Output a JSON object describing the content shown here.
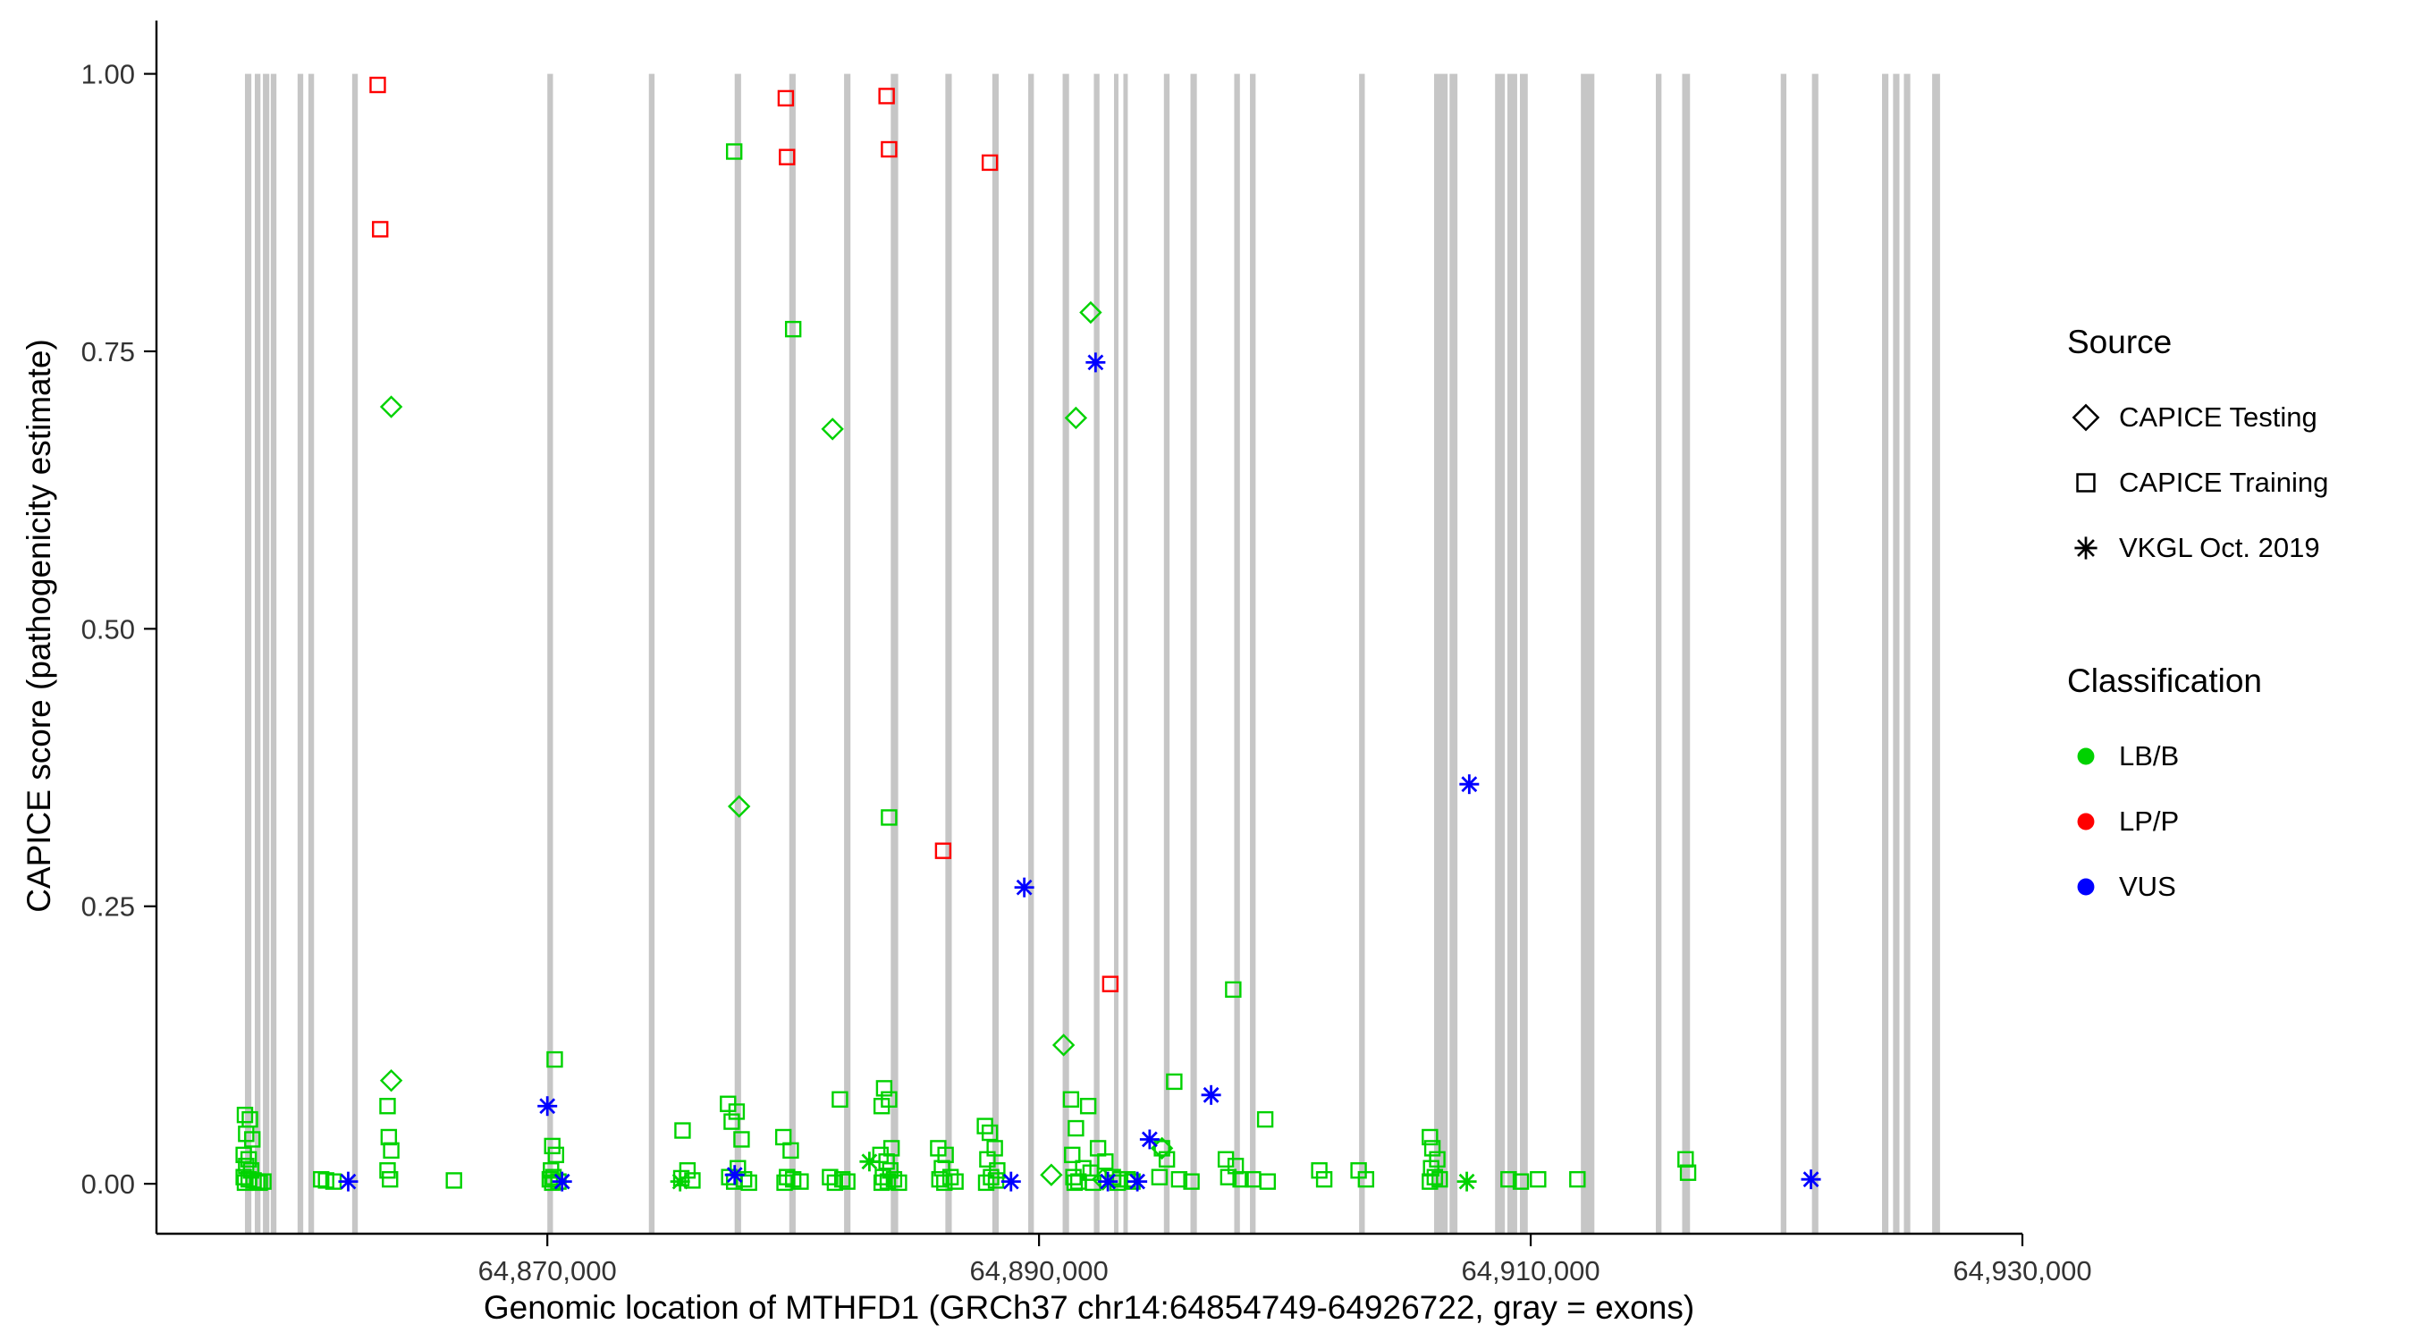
{
  "chart_data": {
    "type": "scatter",
    "title": "",
    "xlabel": "Genomic location of MTHFD1 (GRCh37 chr14:64854749-64926722, gray = exons)",
    "ylabel": "CAPICE score (pathogenicity estimate)",
    "xlim": [
      64854100,
      64930000
    ],
    "ylim": [
      -0.045,
      1.048
    ],
    "grid": "off",
    "legend_position": "right",
    "x_ticks": [
      {
        "value": 64870000,
        "label": "64,870,000"
      },
      {
        "value": 64890000,
        "label": "64,890,000"
      },
      {
        "value": 64910000,
        "label": "64,910,000"
      },
      {
        "value": 64930000,
        "label": "64,930,000"
      }
    ],
    "y_ticks": [
      {
        "value": 0.0,
        "label": "0.00"
      },
      {
        "value": 0.25,
        "label": "0.25"
      },
      {
        "value": 0.5,
        "label": "0.50"
      },
      {
        "value": 0.75,
        "label": "0.75"
      },
      {
        "value": 1.0,
        "label": "1.00"
      }
    ],
    "colors": {
      "exon": "#c6c6c6",
      "axis": "#000000",
      "tick_label": "#333333",
      "lbb": "#00d200",
      "lpp": "#ff0000",
      "vus": "#0000ff"
    },
    "exons": [
      [
        64857700,
        260
      ],
      [
        64858100,
        230
      ],
      [
        64858430,
        260
      ],
      [
        64858750,
        230
      ],
      [
        64859840,
        230
      ],
      [
        64860280,
        230
      ],
      [
        64862060,
        230
      ],
      [
        64870000,
        230
      ],
      [
        64874130,
        230
      ],
      [
        64877620,
        260
      ],
      [
        64879840,
        260
      ],
      [
        64882070,
        260
      ],
      [
        64883970,
        300
      ],
      [
        64886190,
        260
      ],
      [
        64888100,
        260
      ],
      [
        64889560,
        230
      ],
      [
        64890960,
        260
      ],
      [
        64892230,
        230
      ],
      [
        64893050,
        180
      ],
      [
        64893430,
        180
      ],
      [
        64895080,
        230
      ],
      [
        64896160,
        260
      ],
      [
        64897940,
        230
      ],
      [
        64898580,
        230
      ],
      [
        64903020,
        230
      ],
      [
        64906070,
        550
      ],
      [
        64906700,
        320
      ],
      [
        64908550,
        400
      ],
      [
        64909050,
        400
      ],
      [
        64909560,
        320
      ],
      [
        64912040,
        550
      ],
      [
        64915090,
        230
      ],
      [
        64916160,
        320
      ],
      [
        64920170,
        230
      ],
      [
        64921440,
        260
      ],
      [
        64924290,
        260
      ],
      [
        64924740,
        260
      ],
      [
        64925180,
        260
      ],
      [
        64926330,
        320
      ]
    ],
    "series": [
      {
        "name": "CAPICE Testing / LB/B",
        "source": "CAPICE Testing",
        "classification": "LB/B",
        "shape": "diamond",
        "color": "#00d200",
        "points": [
          [
            64863650,
            0.7
          ],
          [
            64863650,
            0.093
          ],
          [
            64877800,
            0.34
          ],
          [
            64881600,
            0.68
          ],
          [
            64891500,
            0.69
          ],
          [
            64892100,
            0.785
          ],
          [
            64891000,
            0.125
          ],
          [
            64895000,
            0.032
          ],
          [
            64890500,
            0.008
          ],
          [
            64892600,
            0.004
          ]
        ]
      },
      {
        "name": "CAPICE Training / LB/B",
        "source": "CAPICE Training",
        "classification": "LB/B",
        "shape": "square",
        "color": "#00d200",
        "points": [
          [
            64857700,
            0.062
          ],
          [
            64857900,
            0.058
          ],
          [
            64857750,
            0.045
          ],
          [
            64858000,
            0.04
          ],
          [
            64857650,
            0.026
          ],
          [
            64857850,
            0.022
          ],
          [
            64857750,
            0.016
          ],
          [
            64857950,
            0.012
          ],
          [
            64857650,
            0.006
          ],
          [
            64857850,
            0.004
          ],
          [
            64858050,
            0.003
          ],
          [
            64858200,
            0.002
          ],
          [
            64857700,
            0.001
          ],
          [
            64858300,
            0.001
          ],
          [
            64858450,
            0.002
          ],
          [
            64860800,
            0.004
          ],
          [
            64861000,
            0.003
          ],
          [
            64861300,
            0.002
          ],
          [
            64863500,
            0.07
          ],
          [
            64863550,
            0.042
          ],
          [
            64863650,
            0.03
          ],
          [
            64863500,
            0.012
          ],
          [
            64863600,
            0.004
          ],
          [
            64866200,
            0.003
          ],
          [
            64870300,
            0.112
          ],
          [
            64870200,
            0.034
          ],
          [
            64870350,
            0.026
          ],
          [
            64870150,
            0.012
          ],
          [
            64870250,
            0.006
          ],
          [
            64870100,
            0.004
          ],
          [
            64870450,
            0.002
          ],
          [
            64870200,
            0.001
          ],
          [
            64875500,
            0.048
          ],
          [
            64875700,
            0.012
          ],
          [
            64875450,
            0.005
          ],
          [
            64875900,
            0.003
          ],
          [
            64877350,
            0.072
          ],
          [
            64877700,
            0.065
          ],
          [
            64877500,
            0.056
          ],
          [
            64877900,
            0.04
          ],
          [
            64877750,
            0.014
          ],
          [
            64877400,
            0.006
          ],
          [
            64878000,
            0.004
          ],
          [
            64877600,
            0.002
          ],
          [
            64878200,
            0.001
          ],
          [
            64877600,
            0.93
          ],
          [
            64880000,
            0.77
          ],
          [
            64879600,
            0.042
          ],
          [
            64879900,
            0.03
          ],
          [
            64879750,
            0.006
          ],
          [
            64880000,
            0.004
          ],
          [
            64880300,
            0.002
          ],
          [
            64879650,
            0.001
          ],
          [
            64881900,
            0.076
          ],
          [
            64881500,
            0.006
          ],
          [
            64882000,
            0.004
          ],
          [
            64882200,
            0.002
          ],
          [
            64881700,
            0.001
          ],
          [
            64883900,
            0.33
          ],
          [
            64883700,
            0.086
          ],
          [
            64883900,
            0.076
          ],
          [
            64883600,
            0.07
          ],
          [
            64884000,
            0.032
          ],
          [
            64883550,
            0.026
          ],
          [
            64883800,
            0.02
          ],
          [
            64883950,
            0.012
          ],
          [
            64883650,
            0.006
          ],
          [
            64884100,
            0.004
          ],
          [
            64883850,
            0.002
          ],
          [
            64884300,
            0.001
          ],
          [
            64883600,
            0.001
          ],
          [
            64885900,
            0.032
          ],
          [
            64886200,
            0.026
          ],
          [
            64886050,
            0.014
          ],
          [
            64886400,
            0.006
          ],
          [
            64885950,
            0.004
          ],
          [
            64886600,
            0.002
          ],
          [
            64886150,
            0.001
          ],
          [
            64887800,
            0.052
          ],
          [
            64888000,
            0.046
          ],
          [
            64888200,
            0.032
          ],
          [
            64887900,
            0.022
          ],
          [
            64888300,
            0.012
          ],
          [
            64888050,
            0.006
          ],
          [
            64888250,
            0.003
          ],
          [
            64887850,
            0.001
          ],
          [
            64891300,
            0.076
          ],
          [
            64892000,
            0.07
          ],
          [
            64891500,
            0.05
          ],
          [
            64892400,
            0.032
          ],
          [
            64891350,
            0.026
          ],
          [
            64892700,
            0.02
          ],
          [
            64891800,
            0.014
          ],
          [
            64892100,
            0.01
          ],
          [
            64891400,
            0.006
          ],
          [
            64893000,
            0.006
          ],
          [
            64893300,
            0.004
          ],
          [
            64893600,
            0.004
          ],
          [
            64891600,
            0.002
          ],
          [
            64893800,
            0.002
          ],
          [
            64892200,
            0.001
          ],
          [
            64891450,
            0.001
          ],
          [
            64893200,
            0.001
          ],
          [
            64895500,
            0.092
          ],
          [
            64895000,
            0.032
          ],
          [
            64895200,
            0.022
          ],
          [
            64894900,
            0.006
          ],
          [
            64895700,
            0.004
          ],
          [
            64896200,
            0.002
          ],
          [
            64897900,
            0.175
          ],
          [
            64897600,
            0.022
          ],
          [
            64898000,
            0.016
          ],
          [
            64897700,
            0.006
          ],
          [
            64898200,
            0.004
          ],
          [
            64899200,
            0.058
          ],
          [
            64898700,
            0.004
          ],
          [
            64899300,
            0.002
          ],
          [
            64901400,
            0.012
          ],
          [
            64901600,
            0.004
          ],
          [
            64903000,
            0.012
          ],
          [
            64903300,
            0.004
          ],
          [
            64905900,
            0.042
          ],
          [
            64906000,
            0.032
          ],
          [
            64906200,
            0.022
          ],
          [
            64905950,
            0.014
          ],
          [
            64906100,
            0.006
          ],
          [
            64906300,
            0.004
          ],
          [
            64905900,
            0.002
          ],
          [
            64909100,
            0.004
          ],
          [
            64909600,
            0.002
          ],
          [
            64910300,
            0.004
          ],
          [
            64911900,
            0.004
          ],
          [
            64916300,
            0.022
          ],
          [
            64916400,
            0.01
          ]
        ]
      },
      {
        "name": "CAPICE Training / LP/P",
        "source": "CAPICE Training",
        "classification": "LP/P",
        "shape": "square",
        "color": "#ff0000",
        "points": [
          [
            64863100,
            0.99
          ],
          [
            64863200,
            0.86
          ],
          [
            64879700,
            0.978
          ],
          [
            64879750,
            0.925
          ],
          [
            64883800,
            0.98
          ],
          [
            64883900,
            0.932
          ],
          [
            64888000,
            0.92
          ],
          [
            64886100,
            0.3
          ],
          [
            64892900,
            0.18
          ]
        ]
      },
      {
        "name": "VKGL Oct. 2019 / VUS",
        "source": "VKGL Oct. 2019",
        "classification": "VUS",
        "shape": "asterisk",
        "color": "#0000ff",
        "points": [
          [
            64892300,
            0.74
          ],
          [
            64907500,
            0.36
          ],
          [
            64889400,
            0.267
          ],
          [
            64897000,
            0.08
          ],
          [
            64870000,
            0.07
          ],
          [
            64894500,
            0.04
          ],
          [
            64861900,
            0.002
          ],
          [
            64870600,
            0.002
          ],
          [
            64877620,
            0.008
          ],
          [
            64888860,
            0.002
          ],
          [
            64892800,
            0.002
          ],
          [
            64894000,
            0.002
          ],
          [
            64921400,
            0.004
          ]
        ]
      },
      {
        "name": "VKGL Oct. 2019 / LB/B",
        "source": "VKGL Oct. 2019",
        "classification": "LB/B",
        "shape": "asterisk",
        "color": "#00d200",
        "points": [
          [
            64875400,
            0.002
          ],
          [
            64883100,
            0.02
          ],
          [
            64907400,
            0.002
          ]
        ]
      }
    ],
    "legend": {
      "source_title": "Source",
      "source_items": [
        {
          "label": "CAPICE Testing",
          "shape": "diamond"
        },
        {
          "label": "CAPICE Training",
          "shape": "square"
        },
        {
          "label": "VKGL Oct. 2019",
          "shape": "asterisk"
        }
      ],
      "classification_title": "Classification",
      "classification_items": [
        {
          "label": "LB/B",
          "color": "#00d200"
        },
        {
          "label": "LP/P",
          "color": "#ff0000"
        },
        {
          "label": "VUS",
          "color": "#0000ff"
        }
      ]
    }
  }
}
